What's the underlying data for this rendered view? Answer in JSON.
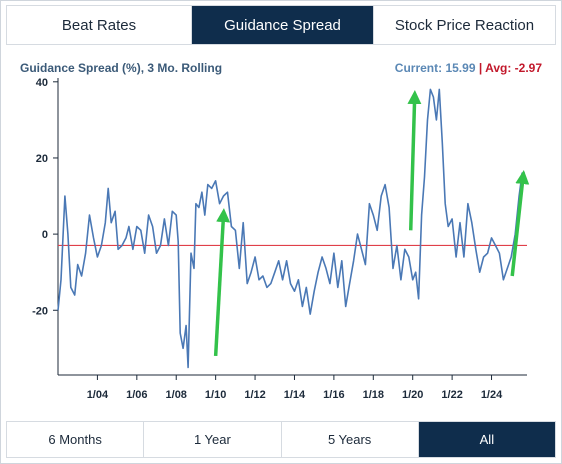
{
  "tabs": [
    {
      "label": "Beat Rates",
      "active": false
    },
    {
      "label": "Guidance Spread",
      "active": true
    },
    {
      "label": "Stock Price Reaction",
      "active": false
    }
  ],
  "chart_title": "Guidance Spread (%), 3 Mo. Rolling",
  "readout": {
    "current_label": "Current: 15.99",
    "separator": "|",
    "avg_label": "Avg: -2.97"
  },
  "range_buttons": [
    {
      "label": "6 Months",
      "active": false
    },
    {
      "label": "1 Year",
      "active": false
    },
    {
      "label": "5 Years",
      "active": false
    },
    {
      "label": "All",
      "active": true
    }
  ],
  "colors": {
    "line": "#4a78b5",
    "average": "#e0404a",
    "arrow": "#33c24a",
    "active_tab": "#0f2d4c"
  },
  "chart_data": {
    "type": "line",
    "title": "Guidance Spread (%), 3 Mo. Rolling",
    "xlabel": "",
    "ylabel": "",
    "x_range": [
      2002.0,
      2025.8
    ],
    "ylim": [
      -37,
      41
    ],
    "y_ticks": [
      40,
      20,
      0,
      -20
    ],
    "x_ticks": [
      {
        "year": 2004,
        "label": "1/04"
      },
      {
        "year": 2006,
        "label": "1/06"
      },
      {
        "year": 2008,
        "label": "1/08"
      },
      {
        "year": 2010,
        "label": "1/10"
      },
      {
        "year": 2012,
        "label": "1/12"
      },
      {
        "year": 2014,
        "label": "1/14"
      },
      {
        "year": 2016,
        "label": "1/16"
      },
      {
        "year": 2018,
        "label": "1/18"
      },
      {
        "year": 2020,
        "label": "1/20"
      },
      {
        "year": 2022,
        "label": "1/22"
      },
      {
        "year": 2024,
        "label": "1/24"
      }
    ],
    "grid": false,
    "average": -2.97,
    "current": 15.99,
    "series": [
      {
        "x": [
          2002.0,
          2002.15,
          2002.35,
          2002.5,
          2002.65,
          2002.85,
          2003.0,
          2003.2,
          2003.4,
          2003.6,
          2003.8,
          2004.0,
          2004.2,
          2004.4,
          2004.55,
          2004.7,
          2004.9,
          2005.05,
          2005.25,
          2005.45,
          2005.6,
          2005.8,
          2006.0,
          2006.2,
          2006.4,
          2006.6,
          2006.8,
          2007.0,
          2007.2,
          2007.4,
          2007.6,
          2007.8,
          2008.0,
          2008.1,
          2008.2,
          2008.35,
          2008.5,
          2008.6,
          2008.75,
          2008.9,
          2009.0,
          2009.15,
          2009.3,
          2009.45,
          2009.6,
          2009.8,
          2010.0,
          2010.2,
          2010.4,
          2010.6,
          2010.8,
          2011.0,
          2011.2,
          2011.4,
          2011.6,
          2011.8,
          2012.0,
          2012.2,
          2012.4,
          2012.6,
          2012.8,
          2013.0,
          2013.2,
          2013.4,
          2013.6,
          2013.8,
          2014.0,
          2014.2,
          2014.4,
          2014.6,
          2014.8,
          2015.0,
          2015.2,
          2015.4,
          2015.6,
          2015.8,
          2016.0,
          2016.2,
          2016.4,
          2016.6,
          2016.8,
          2017.0,
          2017.2,
          2017.4,
          2017.6,
          2017.8,
          2018.0,
          2018.2,
          2018.4,
          2018.6,
          2018.8,
          2019.0,
          2019.2,
          2019.4,
          2019.6,
          2019.8,
          2020.0,
          2020.15,
          2020.3,
          2020.45,
          2020.6,
          2020.75,
          2020.9,
          2021.05,
          2021.2,
          2021.35,
          2021.5,
          2021.65,
          2021.8,
          2022.0,
          2022.2,
          2022.4,
          2022.6,
          2022.8,
          2023.0,
          2023.2,
          2023.4,
          2023.6,
          2023.8,
          2024.0,
          2024.2,
          2024.4,
          2024.6,
          2024.8,
          2025.0,
          2025.2,
          2025.4,
          2025.55,
          2025.7
        ],
        "y": [
          -20,
          -12,
          10,
          0,
          -14,
          -16,
          -8,
          -11,
          -5,
          5,
          -1,
          -6,
          -3,
          3,
          12,
          3,
          6,
          -4,
          -3,
          -1,
          2,
          -4,
          2,
          1,
          -5,
          5,
          2,
          -5,
          -3,
          4,
          -3,
          6,
          5,
          -2,
          -26,
          -30,
          -24,
          -35,
          -5,
          -9,
          8,
          7,
          11,
          5,
          13,
          12,
          14,
          8,
          10,
          11,
          2,
          1,
          -9,
          3,
          -13,
          -10,
          -6,
          -12,
          -11,
          -14,
          -13,
          -10,
          -7,
          -12,
          -7,
          -13,
          -15,
          -12,
          -19,
          -14,
          -21,
          -15,
          -10,
          -6,
          -9,
          -13,
          -5,
          -14,
          -7,
          -19,
          -13,
          -7,
          0,
          -4,
          -8,
          8,
          5,
          1,
          10,
          13,
          7,
          -9,
          -3,
          -12,
          -4,
          -6,
          -12,
          -10,
          -17,
          5,
          15,
          30,
          38,
          36,
          30,
          38,
          24,
          8,
          2,
          4,
          -6,
          3,
          -6,
          8,
          3,
          -4,
          -10,
          -6,
          -5,
          -1,
          -3,
          -5,
          -12,
          -9,
          -6,
          0,
          10,
          16,
          16
        ]
      }
    ],
    "annotations": [
      {
        "type": "arrow",
        "from": [
          2010.0,
          -32
        ],
        "to": [
          2010.4,
          5
        ]
      },
      {
        "type": "arrow",
        "from": [
          2019.9,
          1
        ],
        "to": [
          2020.1,
          36
        ]
      },
      {
        "type": "arrow",
        "from": [
          2025.05,
          -11
        ],
        "to": [
          2025.6,
          15
        ]
      }
    ]
  }
}
